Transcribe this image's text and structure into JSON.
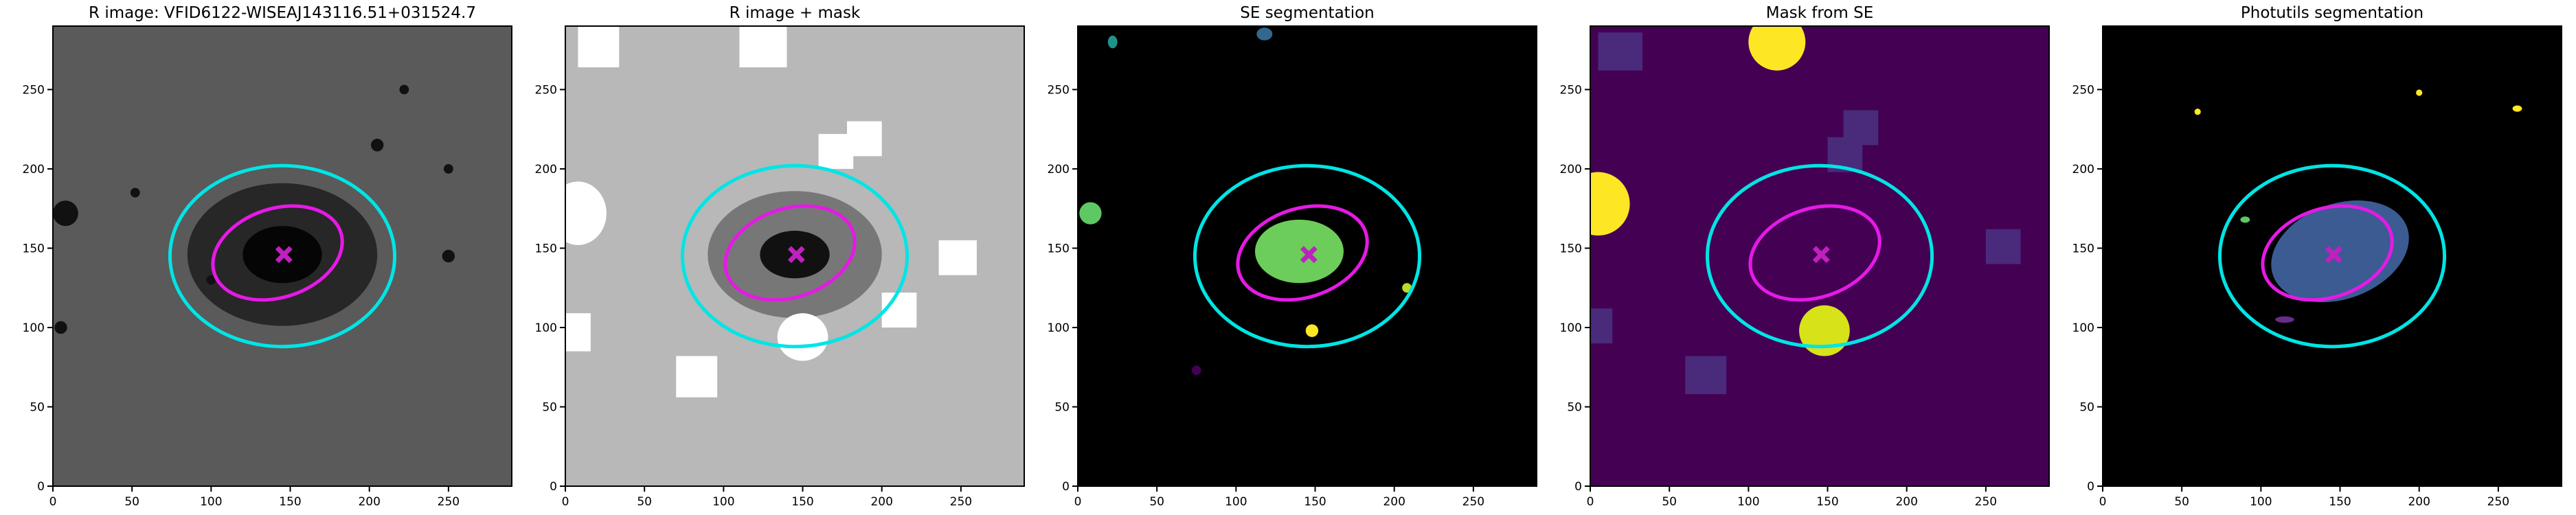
{
  "chart_data": [
    {
      "type": "image",
      "title": "R image: VFID6122-WISEAJ143116.51+031524.7",
      "background": "#5a5a5a",
      "xlim": [
        0,
        290
      ],
      "ylim": [
        0,
        290
      ],
      "xticks": [
        0,
        50,
        100,
        150,
        200,
        250
      ],
      "yticks": [
        0,
        50,
        100,
        150,
        200,
        250
      ],
      "ellipses": [
        {
          "x": 145,
          "y": 145,
          "rx": 71,
          "ry": 57,
          "angle": 0,
          "color": "#00e5e5"
        },
        {
          "x": 142,
          "y": 147,
          "rx": 42,
          "ry": 28,
          "angle": 18,
          "color": "#e619e6"
        }
      ],
      "marker": {
        "x": 146,
        "y": 146,
        "color": "#c020c0"
      }
    },
    {
      "type": "image",
      "title": "R image + mask",
      "background": "#b8b8b8",
      "xlim": [
        0,
        290
      ],
      "ylim": [
        0,
        290
      ],
      "xticks": [
        0,
        50,
        100,
        150,
        200,
        250
      ],
      "yticks": [
        0,
        50,
        100,
        150,
        200,
        250
      ],
      "ellipses": [
        {
          "x": 145,
          "y": 145,
          "rx": 71,
          "ry": 57,
          "angle": 0,
          "color": "#00e5e5"
        },
        {
          "x": 142,
          "y": 147,
          "rx": 42,
          "ry": 28,
          "angle": 18,
          "color": "#e619e6"
        }
      ],
      "marker": {
        "x": 146,
        "y": 146,
        "color": "#c020c0"
      }
    },
    {
      "type": "image",
      "title": "SE segmentation",
      "background": "#000000",
      "xlim": [
        0,
        290
      ],
      "ylim": [
        0,
        290
      ],
      "xticks": [
        0,
        50,
        100,
        150,
        200,
        250
      ],
      "yticks": [
        0,
        50,
        100,
        150,
        200,
        250
      ],
      "ellipses": [
        {
          "x": 145,
          "y": 145,
          "rx": 71,
          "ry": 57,
          "angle": 0,
          "color": "#00e5e5"
        },
        {
          "x": 142,
          "y": 147,
          "rx": 42,
          "ry": 28,
          "angle": 18,
          "color": "#e619e6"
        }
      ],
      "marker": {
        "x": 146,
        "y": 146,
        "color": "#c020c0"
      }
    },
    {
      "type": "image",
      "title": "Mask from SE",
      "background": "#440154",
      "xlim": [
        0,
        290
      ],
      "ylim": [
        0,
        290
      ],
      "xticks": [
        0,
        50,
        100,
        150,
        200,
        250
      ],
      "yticks": [
        0,
        50,
        100,
        150,
        200,
        250
      ],
      "ellipses": [
        {
          "x": 145,
          "y": 145,
          "rx": 71,
          "ry": 57,
          "angle": 0,
          "color": "#00e5e5"
        },
        {
          "x": 142,
          "y": 147,
          "rx": 42,
          "ry": 28,
          "angle": 18,
          "color": "#e619e6"
        }
      ],
      "marker": {
        "x": 146,
        "y": 146,
        "color": "#c020c0"
      }
    },
    {
      "type": "image",
      "title": "Photutils segmentation",
      "background": "#000000",
      "xlim": [
        0,
        290
      ],
      "ylim": [
        0,
        290
      ],
      "xticks": [
        0,
        50,
        100,
        150,
        200,
        250
      ],
      "yticks": [
        0,
        50,
        100,
        150,
        200,
        250
      ],
      "ellipses": [
        {
          "x": 145,
          "y": 145,
          "rx": 71,
          "ry": 57,
          "angle": 0,
          "color": "#00e5e5"
        },
        {
          "x": 142,
          "y": 147,
          "rx": 42,
          "ry": 28,
          "angle": 18,
          "color": "#e619e6"
        }
      ],
      "marker": {
        "x": 146,
        "y": 146,
        "color": "#c020c0"
      }
    }
  ]
}
